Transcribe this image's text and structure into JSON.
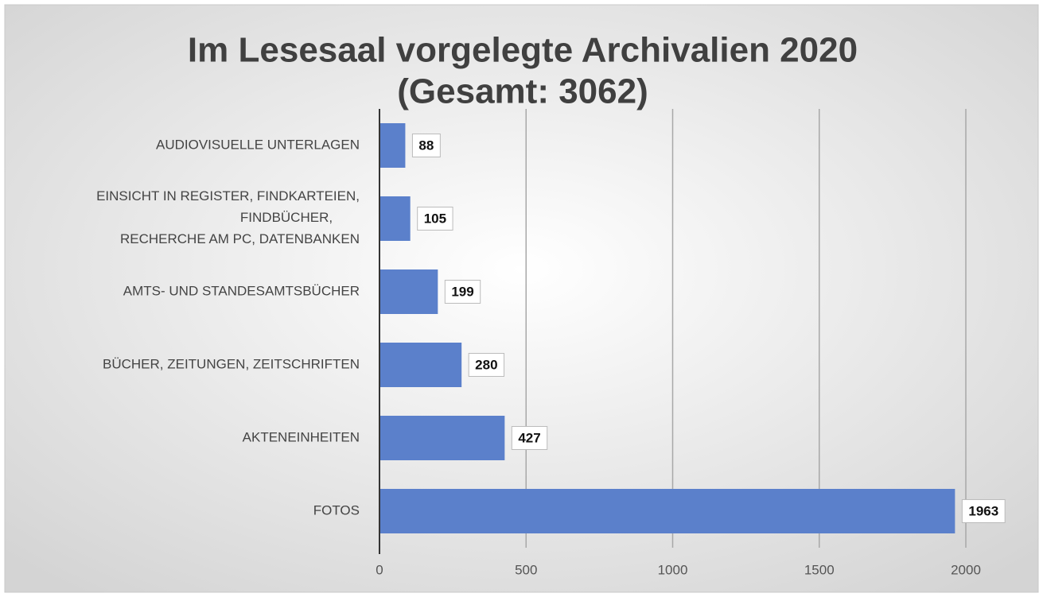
{
  "chart_data": {
    "type": "hbar",
    "title": "Im Lesesaal vorgelegte Archivalien 2020",
    "subtitle": "(Gesamt: 3062)",
    "categories": [
      "AUDIOVISUELLE UNTERLAGEN",
      "EINSICHT IN REGISTER, FINDKARTEIEN,\nFINDBÜCHER,\nRECHERCHE AM PC, DATENBANKEN",
      "AMTS- UND STANDESAMTSBÜCHER",
      "BÜCHER, ZEITUNGEN, ZEITSCHRIFTEN",
      "AKTENEINHEITEN",
      "FOTOS"
    ],
    "values": [
      88,
      105,
      199,
      280,
      427,
      1963
    ],
    "color": "#5b80cb",
    "xlim": [
      0,
      2000
    ],
    "xticks": [
      0,
      500,
      1000,
      1500,
      2000
    ],
    "grid": true
  }
}
